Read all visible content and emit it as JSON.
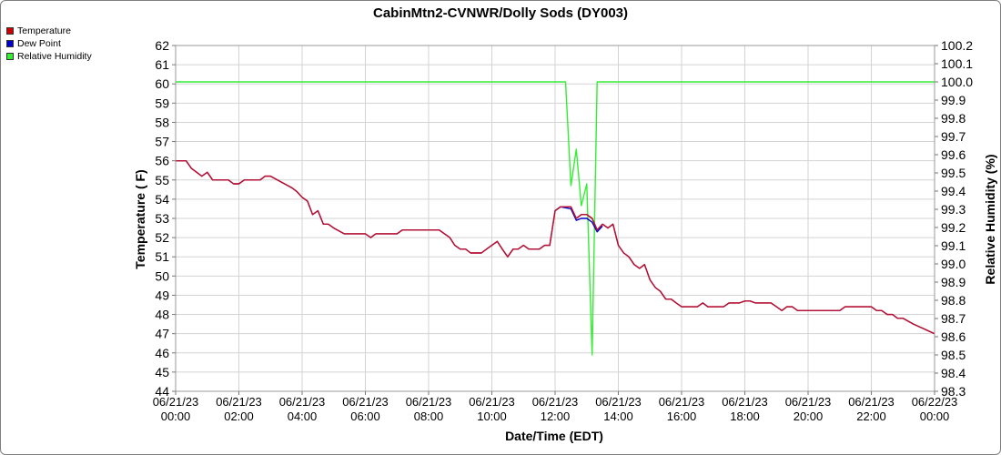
{
  "chart_data": {
    "type": "line",
    "title": "CabinMtn2-CVNWR/Dolly Sods (DY003)",
    "xlabel": "Date/Time (EDT)",
    "ylabel": "Temperature ( F)",
    "y2label": "Relative Humidity (%)",
    "grid": true,
    "legend_position": "top-left",
    "xlim_hours": [
      0,
      24
    ],
    "ylim": [
      44,
      62
    ],
    "y2lim": [
      98.3,
      100.2
    ],
    "x_ticks": [
      {
        "hour": 0,
        "date": "06/21/23",
        "time": "00:00"
      },
      {
        "hour": 2,
        "date": "06/21/23",
        "time": "02:00"
      },
      {
        "hour": 4,
        "date": "06/21/23",
        "time": "04:00"
      },
      {
        "hour": 6,
        "date": "06/21/23",
        "time": "06:00"
      },
      {
        "hour": 8,
        "date": "06/21/23",
        "time": "08:00"
      },
      {
        "hour": 10,
        "date": "06/21/23",
        "time": "10:00"
      },
      {
        "hour": 12,
        "date": "06/21/23",
        "time": "12:00"
      },
      {
        "hour": 14,
        "date": "06/21/23",
        "time": "14:00"
      },
      {
        "hour": 16,
        "date": "06/21/23",
        "time": "16:00"
      },
      {
        "hour": 18,
        "date": "06/21/23",
        "time": "18:00"
      },
      {
        "hour": 20,
        "date": "06/21/23",
        "time": "20:00"
      },
      {
        "hour": 22,
        "date": "06/21/23",
        "time": "22:00"
      },
      {
        "hour": 24,
        "date": "06/22/23",
        "time": "00:00"
      }
    ],
    "y_ticks": [
      "44",
      "45",
      "46",
      "47",
      "48",
      "49",
      "50",
      "51",
      "52",
      "53",
      "54",
      "55",
      "56",
      "57",
      "58",
      "59",
      "60",
      "61",
      "62"
    ],
    "y2_ticks": [
      "98.3",
      "98.4",
      "98.5",
      "98.6",
      "98.7",
      "98.8",
      "98.9",
      "99.0",
      "99.1",
      "99.2",
      "99.3",
      "99.4",
      "99.5",
      "99.6",
      "99.7",
      "99.8",
      "99.9",
      "100.0",
      "100.1",
      "100.2"
    ],
    "series": [
      {
        "name": "Temperature",
        "color": "#cc0000",
        "axis": "left",
        "points": [
          [
            0.0,
            56.0
          ],
          [
            0.33,
            56.0
          ],
          [
            0.5,
            55.6
          ],
          [
            0.83,
            55.2
          ],
          [
            1.0,
            55.4
          ],
          [
            1.17,
            55.0
          ],
          [
            1.67,
            55.0
          ],
          [
            1.83,
            54.8
          ],
          [
            2.0,
            54.8
          ],
          [
            2.17,
            55.0
          ],
          [
            2.67,
            55.0
          ],
          [
            2.83,
            55.2
          ],
          [
            3.0,
            55.2
          ],
          [
            3.33,
            54.9
          ],
          [
            3.67,
            54.6
          ],
          [
            3.83,
            54.4
          ],
          [
            4.0,
            54.1
          ],
          [
            4.17,
            53.9
          ],
          [
            4.33,
            53.2
          ],
          [
            4.5,
            53.4
          ],
          [
            4.67,
            52.7
          ],
          [
            4.83,
            52.7
          ],
          [
            5.0,
            52.5
          ],
          [
            5.33,
            52.2
          ],
          [
            6.0,
            52.2
          ],
          [
            6.17,
            52.0
          ],
          [
            6.33,
            52.2
          ],
          [
            7.0,
            52.2
          ],
          [
            7.17,
            52.4
          ],
          [
            8.33,
            52.4
          ],
          [
            8.67,
            52.0
          ],
          [
            8.83,
            51.6
          ],
          [
            9.0,
            51.4
          ],
          [
            9.17,
            51.4
          ],
          [
            9.33,
            51.2
          ],
          [
            9.67,
            51.2
          ],
          [
            9.83,
            51.4
          ],
          [
            10.17,
            51.8
          ],
          [
            10.33,
            51.4
          ],
          [
            10.5,
            51.0
          ],
          [
            10.67,
            51.4
          ],
          [
            10.83,
            51.4
          ],
          [
            11.0,
            51.6
          ],
          [
            11.17,
            51.4
          ],
          [
            11.5,
            51.4
          ],
          [
            11.67,
            51.6
          ],
          [
            11.83,
            51.6
          ],
          [
            12.0,
            53.4
          ],
          [
            12.17,
            53.6
          ],
          [
            12.5,
            53.6
          ],
          [
            12.67,
            53.0
          ],
          [
            12.83,
            53.2
          ],
          [
            13.0,
            53.2
          ],
          [
            13.17,
            53.0
          ],
          [
            13.33,
            52.4
          ],
          [
            13.5,
            52.7
          ],
          [
            13.67,
            52.5
          ],
          [
            13.83,
            52.7
          ],
          [
            14.0,
            51.6
          ],
          [
            14.17,
            51.2
          ],
          [
            14.33,
            51.0
          ],
          [
            14.5,
            50.6
          ],
          [
            14.67,
            50.4
          ],
          [
            14.83,
            50.6
          ],
          [
            15.0,
            49.8
          ],
          [
            15.17,
            49.4
          ],
          [
            15.33,
            49.2
          ],
          [
            15.5,
            48.8
          ],
          [
            15.67,
            48.8
          ],
          [
            15.83,
            48.6
          ],
          [
            16.0,
            48.4
          ],
          [
            16.5,
            48.4
          ],
          [
            16.67,
            48.6
          ],
          [
            16.83,
            48.4
          ],
          [
            17.33,
            48.4
          ],
          [
            17.5,
            48.6
          ],
          [
            17.83,
            48.6
          ],
          [
            18.0,
            48.7
          ],
          [
            18.17,
            48.7
          ],
          [
            18.33,
            48.6
          ],
          [
            18.83,
            48.6
          ],
          [
            19.0,
            48.4
          ],
          [
            19.17,
            48.2
          ],
          [
            19.33,
            48.4
          ],
          [
            19.5,
            48.4
          ],
          [
            19.67,
            48.2
          ],
          [
            21.0,
            48.2
          ],
          [
            21.17,
            48.4
          ],
          [
            22.0,
            48.4
          ],
          [
            22.17,
            48.2
          ],
          [
            22.33,
            48.2
          ],
          [
            22.5,
            48.0
          ],
          [
            22.67,
            48.0
          ],
          [
            22.83,
            47.8
          ],
          [
            23.0,
            47.8
          ],
          [
            23.33,
            47.5
          ],
          [
            24.0,
            47.0
          ]
        ]
      },
      {
        "name": "Dew Point",
        "color": "#0000cc",
        "axis": "left",
        "points": [
          [
            12.0,
            53.4
          ],
          [
            12.17,
            53.6
          ],
          [
            12.5,
            53.5
          ],
          [
            12.67,
            52.9
          ],
          [
            12.83,
            53.0
          ],
          [
            13.0,
            53.0
          ],
          [
            13.17,
            52.8
          ],
          [
            13.33,
            52.3
          ],
          [
            13.5,
            52.6
          ]
        ]
      },
      {
        "name": "Relative Humidity",
        "color": "#33ee33",
        "axis": "right",
        "points": [
          [
            0.0,
            100.0
          ],
          [
            12.33,
            100.0
          ],
          [
            12.5,
            99.43
          ],
          [
            12.67,
            99.63
          ],
          [
            12.83,
            99.32
          ],
          [
            13.0,
            99.44
          ],
          [
            13.17,
            98.5
          ],
          [
            13.33,
            100.0
          ],
          [
            24.0,
            100.0
          ]
        ]
      }
    ]
  }
}
